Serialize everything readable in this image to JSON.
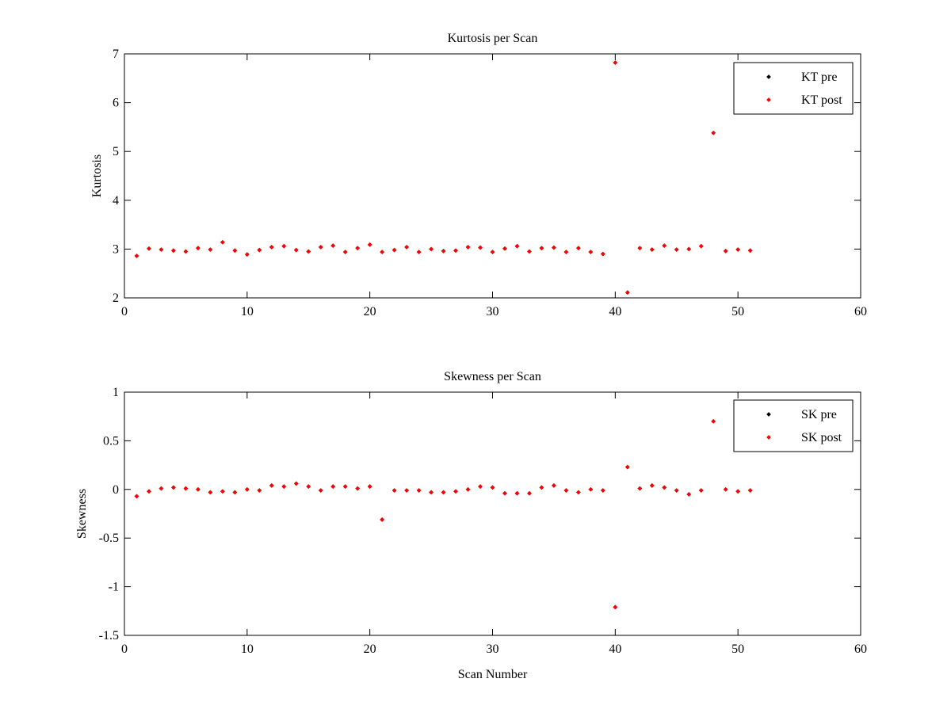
{
  "chart_data": [
    {
      "type": "scatter",
      "title": "Kurtosis per Scan",
      "xlabel": "",
      "ylabel": "Kurtosis",
      "xlim": [
        0,
        60
      ],
      "ylim": [
        2,
        7
      ],
      "xticks": [
        "0",
        "10",
        "20",
        "30",
        "40",
        "50",
        "60"
      ],
      "yticks": [
        "2",
        "3",
        "4",
        "5",
        "6",
        "7"
      ],
      "legend_position": "top-right",
      "series": [
        {
          "name": "KT pre",
          "color": "#000000",
          "x": [
            1,
            2,
            3,
            4,
            5,
            6,
            7,
            8,
            9,
            10,
            11,
            12,
            13,
            14,
            15,
            16,
            17,
            18,
            19,
            20,
            21,
            22,
            23,
            24,
            25,
            26,
            27,
            28,
            29,
            30,
            31,
            32,
            33,
            34,
            35,
            36,
            37,
            38,
            39,
            40,
            41,
            42,
            43,
            44,
            45,
            46,
            47,
            48,
            49,
            50,
            51
          ],
          "y": [
            2.86,
            3.01,
            2.99,
            2.97,
            2.95,
            3.02,
            2.99,
            3.14,
            2.97,
            2.89,
            2.98,
            3.04,
            3.06,
            2.98,
            2.95,
            3.04,
            3.07,
            2.94,
            3.02,
            3.09,
            2.94,
            2.98,
            3.04,
            2.94,
            3.0,
            2.96,
            2.97,
            3.04,
            3.03,
            2.94,
            3.01,
            3.06,
            2.95,
            3.02,
            3.03,
            2.94,
            3.02,
            2.94,
            2.9,
            6.82,
            2.11,
            3.02,
            2.99,
            3.07,
            2.99,
            3.0,
            3.06,
            5.38,
            2.96,
            2.99,
            2.97
          ]
        },
        {
          "name": "KT post",
          "color": "#ff0000",
          "x": [
            1,
            2,
            3,
            4,
            5,
            6,
            7,
            8,
            9,
            10,
            11,
            12,
            13,
            14,
            15,
            16,
            17,
            18,
            19,
            20,
            21,
            22,
            23,
            24,
            25,
            26,
            27,
            28,
            29,
            30,
            31,
            32,
            33,
            34,
            35,
            36,
            37,
            38,
            39,
            40,
            41,
            42,
            43,
            44,
            45,
            46,
            47,
            48,
            49,
            50,
            51
          ],
          "y": [
            2.86,
            3.01,
            2.99,
            2.97,
            2.95,
            3.02,
            2.99,
            3.14,
            2.97,
            2.89,
            2.98,
            3.04,
            3.06,
            2.98,
            2.95,
            3.04,
            3.07,
            2.94,
            3.02,
            3.09,
            2.94,
            2.98,
            3.04,
            2.94,
            3.0,
            2.96,
            2.97,
            3.04,
            3.03,
            2.94,
            3.01,
            3.06,
            2.95,
            3.02,
            3.03,
            2.94,
            3.02,
            2.94,
            2.9,
            6.82,
            2.11,
            3.02,
            2.99,
            3.07,
            2.99,
            3.0,
            3.06,
            5.38,
            2.96,
            2.99,
            2.97
          ]
        }
      ]
    },
    {
      "type": "scatter",
      "title": "Skewness per Scan",
      "xlabel": "Scan Number",
      "ylabel": "Skewness",
      "xlim": [
        0,
        60
      ],
      "ylim": [
        -1.5,
        1
      ],
      "xticks": [
        "0",
        "10",
        "20",
        "30",
        "40",
        "50",
        "60"
      ],
      "yticks": [
        "-1.5",
        "-1",
        "-0.5",
        "0",
        "0.5",
        "1"
      ],
      "legend_position": "top-right",
      "series": [
        {
          "name": "SK pre",
          "color": "#000000",
          "x": [
            1,
            2,
            3,
            4,
            5,
            6,
            7,
            8,
            9,
            10,
            11,
            12,
            13,
            14,
            15,
            16,
            17,
            18,
            19,
            20,
            21,
            22,
            23,
            24,
            25,
            26,
            27,
            28,
            29,
            30,
            31,
            32,
            33,
            34,
            35,
            36,
            37,
            38,
            39,
            40,
            41,
            42,
            43,
            44,
            45,
            46,
            47,
            48,
            49,
            50,
            51
          ],
          "y": [
            -0.07,
            -0.02,
            0.01,
            0.02,
            0.01,
            0.0,
            -0.03,
            -0.02,
            -0.03,
            0.0,
            -0.01,
            0.04,
            0.03,
            0.06,
            0.03,
            -0.01,
            0.03,
            0.03,
            0.01,
            0.03,
            -0.31,
            -0.01,
            -0.01,
            -0.01,
            -0.03,
            -0.03,
            -0.02,
            0.0,
            0.03,
            0.02,
            -0.04,
            -0.04,
            -0.04,
            0.02,
            0.04,
            -0.01,
            -0.03,
            0.0,
            -0.01,
            -1.21,
            0.23,
            0.01,
            0.04,
            0.02,
            -0.01,
            -0.05,
            -0.01,
            0.7,
            0.0,
            -0.02,
            -0.01
          ]
        },
        {
          "name": "SK post",
          "color": "#ff0000",
          "x": [
            1,
            2,
            3,
            4,
            5,
            6,
            7,
            8,
            9,
            10,
            11,
            12,
            13,
            14,
            15,
            16,
            17,
            18,
            19,
            20,
            21,
            22,
            23,
            24,
            25,
            26,
            27,
            28,
            29,
            30,
            31,
            32,
            33,
            34,
            35,
            36,
            37,
            38,
            39,
            40,
            41,
            42,
            43,
            44,
            45,
            46,
            47,
            48,
            49,
            50,
            51
          ],
          "y": [
            -0.07,
            -0.02,
            0.01,
            0.02,
            0.01,
            0.0,
            -0.03,
            -0.02,
            -0.03,
            0.0,
            -0.01,
            0.04,
            0.03,
            0.06,
            0.03,
            -0.01,
            0.03,
            0.03,
            0.01,
            0.03,
            -0.31,
            -0.01,
            -0.01,
            -0.01,
            -0.03,
            -0.03,
            -0.02,
            0.0,
            0.03,
            0.02,
            -0.04,
            -0.04,
            -0.04,
            0.02,
            0.04,
            -0.01,
            -0.03,
            0.0,
            -0.01,
            -1.21,
            0.23,
            0.01,
            0.04,
            0.02,
            -0.01,
            -0.05,
            -0.01,
            0.7,
            0.0,
            -0.02,
            -0.01
          ]
        }
      ]
    }
  ]
}
